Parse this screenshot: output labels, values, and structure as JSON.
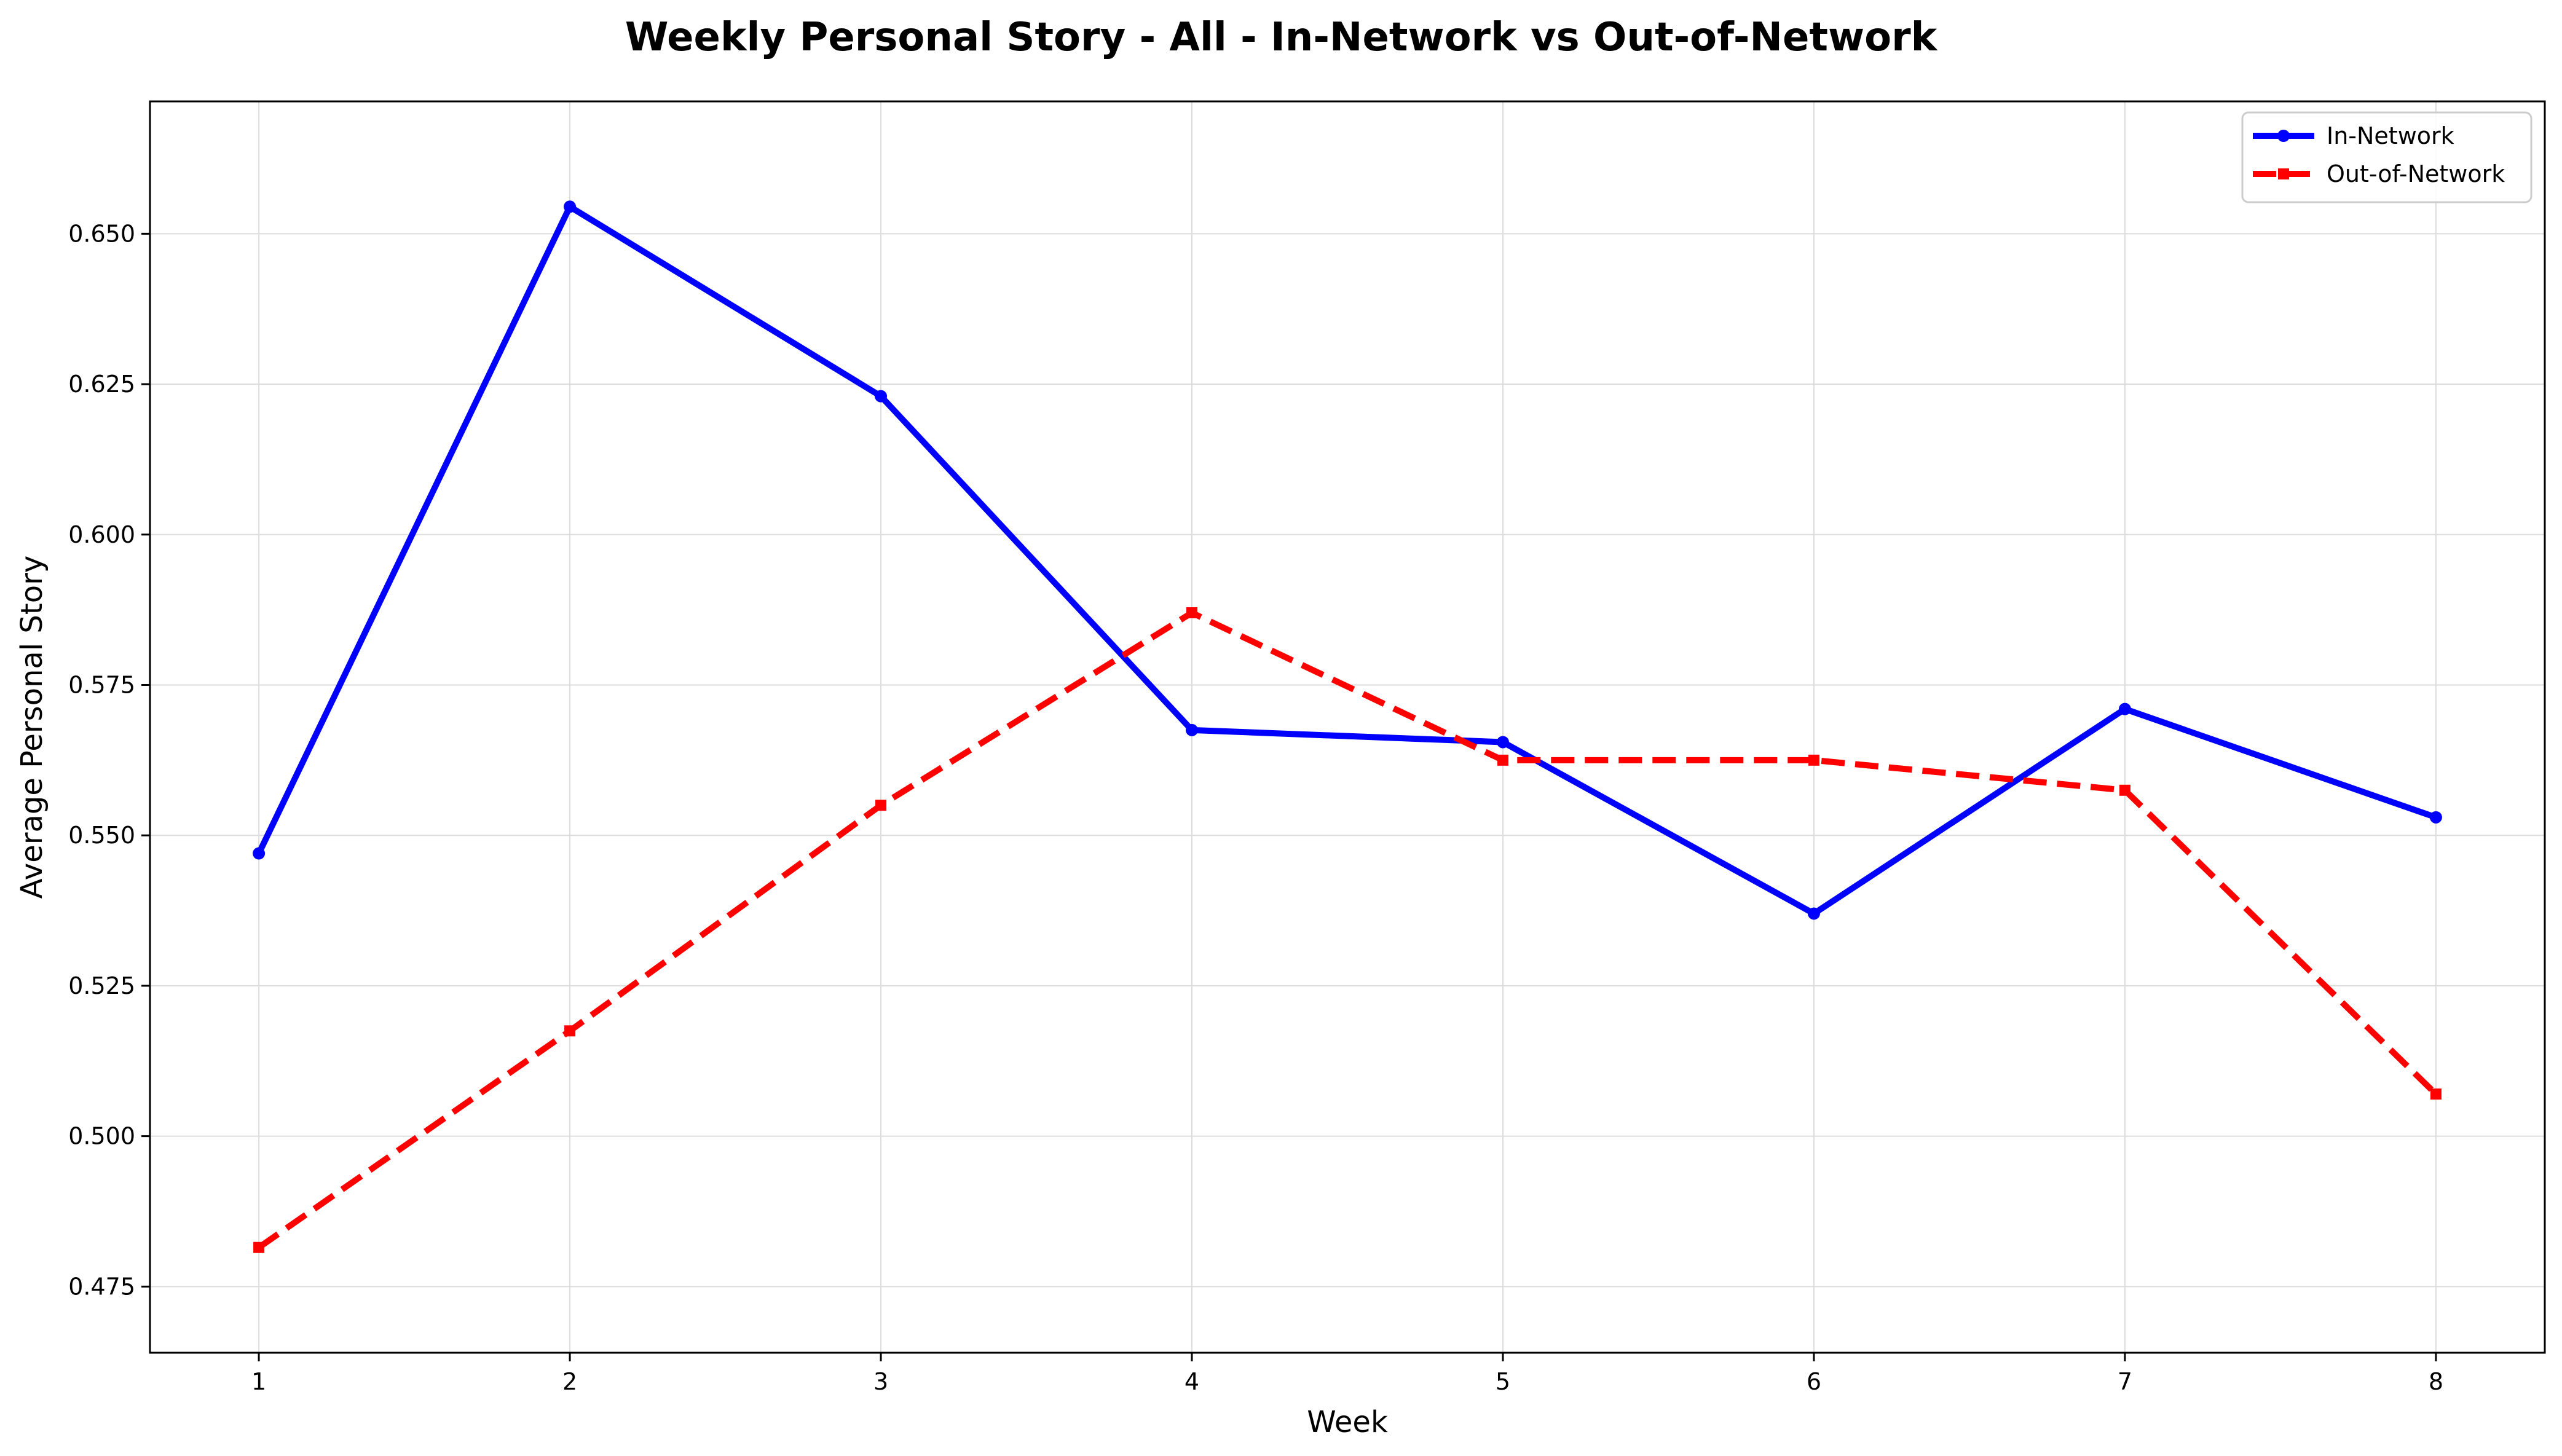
{
  "chart_data": {
    "type": "line",
    "title": "Weekly Personal Story - All - In-Network vs Out-of-Network",
    "xlabel": "Week",
    "ylabel": "Average Personal Story",
    "x": [
      1,
      2,
      3,
      4,
      5,
      6,
      7,
      8
    ],
    "xlim": [
      0.65,
      8.35
    ],
    "ylim": [
      0.464,
      0.672
    ],
    "yticks": [
      0.475,
      0.5,
      0.525,
      0.55,
      0.575,
      0.6,
      0.625,
      0.65
    ],
    "ytick_labels": [
      "0.475",
      "0.500",
      "0.525",
      "0.550",
      "0.575",
      "0.600",
      "0.625",
      "0.650"
    ],
    "xtick_labels": [
      "1",
      "2",
      "3",
      "4",
      "5",
      "6",
      "7",
      "8"
    ],
    "grid": true,
    "legend_position": "top-right",
    "series": [
      {
        "name": "In-Network",
        "values": [
          0.547,
          0.6545,
          0.623,
          0.5675,
          0.5655,
          0.537,
          0.571,
          0.553
        ],
        "color": "#0000ff",
        "marker": "circle",
        "line_style": "solid"
      },
      {
        "name": "Out-of-Network",
        "values": [
          0.4815,
          0.5175,
          0.555,
          0.587,
          0.5625,
          0.5625,
          0.5575,
          0.507
        ],
        "color": "#ff0000",
        "marker": "square",
        "line_style": "dashed"
      }
    ]
  }
}
